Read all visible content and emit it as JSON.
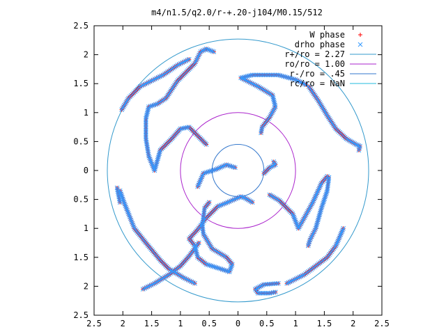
{
  "chart_data": {
    "type": "scatter",
    "title": "m4/n1.5/q2.0/r-+.20-j104/M0.15/512",
    "xlabel": "",
    "ylabel": "",
    "xlim": [
      -2.5,
      2.5
    ],
    "ylim": [
      -2.5,
      2.5
    ],
    "x_ticks": [
      -2.5,
      -2,
      -1.5,
      -1,
      -0.5,
      0,
      0.5,
      1,
      1.5,
      2,
      2.5
    ],
    "y_ticks": [
      -2.5,
      -2,
      -1.5,
      -1,
      -0.5,
      0,
      0.5,
      1,
      1.5,
      2,
      2.5
    ],
    "x_tick_labels": [
      "2.5",
      "2",
      "1.5",
      "1",
      "0.5",
      "0",
      "0.5",
      "1",
      "1.5",
      "2",
      "2.5"
    ],
    "y_tick_labels": [
      "2.5",
      "2",
      "1.5",
      "1",
      "0.5",
      "0",
      "0.5",
      "1",
      "1.5",
      "2",
      "2.5"
    ],
    "grid": false,
    "legend_position": "top-right",
    "legend": [
      {
        "label": "W phase",
        "kind": "points",
        "marker": "plus",
        "color": "#ff0000"
      },
      {
        "label": "drho phase",
        "kind": "points",
        "marker": "x",
        "color": "#3399ff"
      },
      {
        "label": "r+/ro = 2.27",
        "kind": "line",
        "color": "#3399cc"
      },
      {
        "label": "ro/ro = 1.00",
        "kind": "line",
        "color": "#aa22cc"
      },
      {
        "label": "r-/ro = .45",
        "kind": "line",
        "color": "#3377cc"
      },
      {
        "label": "rc/ro = NaN",
        "kind": "line",
        "color": "#22bbdd"
      }
    ],
    "circles": [
      {
        "name": "r+/ro",
        "radius": 2.27,
        "color": "#3399cc"
      },
      {
        "name": "ro/ro",
        "radius": 1.0,
        "color": "#aa22cc"
      },
      {
        "name": "r-/ro",
        "radius": 0.45,
        "color": "#3377cc"
      }
    ],
    "series": [
      {
        "name": "W phase",
        "marker": "plus",
        "color": "#ff0000",
        "arms": [
          [
            [
              0.4,
              0.65
            ],
            [
              0.42,
              0.75
            ],
            [
              0.55,
              0.92
            ],
            [
              0.65,
              1.1
            ],
            [
              0.6,
              1.3
            ],
            [
              0.35,
              1.45
            ],
            [
              0.05,
              1.6
            ],
            [
              0.25,
              1.65
            ],
            [
              0.7,
              1.65
            ],
            [
              1.0,
              1.57
            ],
            [
              1.18,
              1.48
            ]
          ],
          [
            [
              1.23,
              1.45
            ],
            [
              1.4,
              1.2
            ],
            [
              1.55,
              0.95
            ],
            [
              1.7,
              0.72
            ],
            [
              1.88,
              0.55
            ],
            [
              2.05,
              0.45
            ],
            [
              2.12,
              0.42
            ],
            [
              2.1,
              0.35
            ]
          ],
          [
            [
              0.45,
              -0.05
            ],
            [
              0.55,
              0.05
            ],
            [
              0.65,
              0.1
            ],
            [
              0.62,
              0.15
            ]
          ],
          [
            [
              0.55,
              -0.42
            ],
            [
              0.72,
              -0.52
            ],
            [
              0.95,
              -0.75
            ],
            [
              1.05,
              -1.0
            ],
            [
              1.3,
              -0.55
            ],
            [
              1.45,
              -0.22
            ],
            [
              1.55,
              -0.1
            ],
            [
              1.58,
              -0.12
            ],
            [
              1.55,
              -0.35
            ],
            [
              1.45,
              -0.65
            ],
            [
              1.35,
              -1.0
            ],
            [
              1.25,
              -1.2
            ],
            [
              1.22,
              -1.3
            ]
          ],
          [
            [
              1.83,
              -1.0
            ],
            [
              1.7,
              -1.3
            ],
            [
              1.55,
              -1.5
            ],
            [
              1.35,
              -1.65
            ],
            [
              1.15,
              -1.8
            ],
            [
              0.85,
              -1.95
            ]
          ],
          [
            [
              0.7,
              -1.95
            ],
            [
              0.45,
              -1.97
            ],
            [
              0.3,
              -2.05
            ],
            [
              0.35,
              -2.12
            ],
            [
              0.55,
              -2.12
            ],
            [
              0.65,
              -2.1
            ]
          ],
          [
            [
              0.25,
              -0.55
            ],
            [
              0.13,
              -0.48
            ],
            [
              0.05,
              -0.45
            ],
            [
              -0.18,
              -0.55
            ],
            [
              -0.35,
              -0.62
            ],
            [
              -0.55,
              -0.82
            ],
            [
              -0.7,
              -1.02
            ],
            [
              -0.85,
              -1.18
            ],
            [
              -0.75,
              -1.3
            ],
            [
              -0.7,
              -1.5
            ],
            [
              -0.55,
              -1.62
            ],
            [
              -0.3,
              -1.7
            ],
            [
              -0.15,
              -1.75
            ],
            [
              -0.1,
              -1.62
            ],
            [
              -0.2,
              -1.5
            ],
            [
              -0.45,
              -1.35
            ],
            [
              -0.6,
              -1.1
            ],
            [
              -0.62,
              -0.95
            ],
            [
              -0.58,
              -0.65
            ],
            [
              -0.5,
              -0.55
            ]
          ],
          [
            [
              -0.68,
              -1.25
            ],
            [
              -0.85,
              -1.48
            ],
            [
              -1.0,
              -1.65
            ],
            [
              -1.2,
              -1.8
            ],
            [
              -1.45,
              -1.95
            ],
            [
              -1.65,
              -2.05
            ]
          ],
          [
            [
              -2.05,
              -0.35
            ],
            [
              -1.98,
              -0.55
            ],
            [
              -1.88,
              -0.8
            ],
            [
              -1.8,
              -1.0
            ],
            [
              -1.6,
              -1.25
            ],
            [
              -1.35,
              -1.55
            ],
            [
              -1.2,
              -1.7
            ],
            [
              -0.95,
              -1.85
            ],
            [
              -0.75,
              -1.95
            ]
          ],
          [
            [
              -2.1,
              -0.3
            ],
            [
              -2.05,
              -0.55
            ]
          ],
          [
            [
              -0.55,
              0.45
            ],
            [
              -0.65,
              0.55
            ],
            [
              -0.85,
              0.75
            ],
            [
              -1.0,
              0.72
            ],
            [
              -1.15,
              0.55
            ],
            [
              -1.35,
              0.35
            ],
            [
              -1.45,
              0.0
            ],
            [
              -1.55,
              0.25
            ],
            [
              -1.6,
              0.55
            ],
            [
              -1.6,
              0.9
            ],
            [
              -1.55,
              1.1
            ],
            [
              -1.4,
              1.15
            ],
            [
              -1.25,
              1.25
            ],
            [
              -1.05,
              1.55
            ],
            [
              -0.9,
              1.7
            ],
            [
              -0.75,
              1.85
            ],
            [
              -0.65,
              2.05
            ],
            [
              -0.55,
              2.1
            ],
            [
              -0.42,
              2.05
            ]
          ],
          [
            [
              -0.05,
              0.05
            ],
            [
              -0.2,
              0.1
            ],
            [
              -0.38,
              0.02
            ],
            [
              -0.6,
              -0.05
            ],
            [
              -0.7,
              -0.28
            ]
          ],
          [
            [
              -2.02,
              1.05
            ],
            [
              -1.9,
              1.25
            ],
            [
              -1.7,
              1.45
            ],
            [
              -1.5,
              1.55
            ],
            [
              -1.3,
              1.65
            ],
            [
              -1.05,
              1.82
            ],
            [
              -0.85,
              1.92
            ]
          ]
        ]
      },
      {
        "name": "drho phase",
        "marker": "x",
        "color": "#3399ff",
        "arms": [
          [
            [
              0.4,
              0.65
            ],
            [
              0.42,
              0.75
            ],
            [
              0.55,
              0.92
            ],
            [
              0.65,
              1.1
            ],
            [
              0.6,
              1.3
            ],
            [
              0.35,
              1.45
            ],
            [
              0.05,
              1.6
            ],
            [
              0.25,
              1.65
            ],
            [
              0.7,
              1.65
            ],
            [
              1.0,
              1.57
            ],
            [
              1.18,
              1.48
            ]
          ],
          [
            [
              1.23,
              1.45
            ],
            [
              1.4,
              1.2
            ],
            [
              1.55,
              0.95
            ],
            [
              1.7,
              0.72
            ],
            [
              1.88,
              0.55
            ],
            [
              2.05,
              0.45
            ],
            [
              2.12,
              0.42
            ],
            [
              2.1,
              0.35
            ]
          ],
          [
            [
              0.45,
              -0.05
            ],
            [
              0.55,
              0.05
            ],
            [
              0.65,
              0.1
            ],
            [
              0.62,
              0.15
            ]
          ],
          [
            [
              0.55,
              -0.42
            ],
            [
              0.72,
              -0.52
            ],
            [
              0.95,
              -0.75
            ],
            [
              1.05,
              -1.0
            ],
            [
              1.3,
              -0.55
            ],
            [
              1.45,
              -0.22
            ],
            [
              1.55,
              -0.1
            ],
            [
              1.58,
              -0.12
            ],
            [
              1.55,
              -0.35
            ],
            [
              1.45,
              -0.65
            ],
            [
              1.35,
              -1.0
            ],
            [
              1.25,
              -1.2
            ],
            [
              1.22,
              -1.3
            ]
          ],
          [
            [
              1.83,
              -1.0
            ],
            [
              1.7,
              -1.3
            ],
            [
              1.55,
              -1.5
            ],
            [
              1.35,
              -1.65
            ],
            [
              1.15,
              -1.8
            ],
            [
              0.85,
              -1.95
            ]
          ],
          [
            [
              0.7,
              -1.95
            ],
            [
              0.45,
              -1.97
            ],
            [
              0.3,
              -2.05
            ],
            [
              0.35,
              -2.12
            ],
            [
              0.55,
              -2.12
            ],
            [
              0.65,
              -2.1
            ]
          ],
          [
            [
              0.25,
              -0.55
            ],
            [
              0.13,
              -0.48
            ],
            [
              0.05,
              -0.45
            ],
            [
              -0.18,
              -0.55
            ],
            [
              -0.35,
              -0.62
            ],
            [
              -0.55,
              -0.82
            ],
            [
              -0.7,
              -1.02
            ],
            [
              -0.85,
              -1.18
            ],
            [
              -0.75,
              -1.3
            ],
            [
              -0.7,
              -1.5
            ],
            [
              -0.55,
              -1.62
            ],
            [
              -0.3,
              -1.7
            ],
            [
              -0.15,
              -1.75
            ],
            [
              -0.1,
              -1.62
            ],
            [
              -0.2,
              -1.5
            ],
            [
              -0.45,
              -1.35
            ],
            [
              -0.6,
              -1.1
            ],
            [
              -0.62,
              -0.95
            ],
            [
              -0.58,
              -0.65
            ],
            [
              -0.5,
              -0.55
            ]
          ],
          [
            [
              -0.68,
              -1.25
            ],
            [
              -0.85,
              -1.48
            ],
            [
              -1.0,
              -1.65
            ],
            [
              -1.2,
              -1.8
            ],
            [
              -1.45,
              -1.95
            ],
            [
              -1.65,
              -2.05
            ]
          ],
          [
            [
              -2.05,
              -0.35
            ],
            [
              -1.98,
              -0.55
            ],
            [
              -1.88,
              -0.8
            ],
            [
              -1.8,
              -1.0
            ],
            [
              -1.6,
              -1.25
            ],
            [
              -1.35,
              -1.55
            ],
            [
              -1.2,
              -1.7
            ],
            [
              -0.95,
              -1.85
            ],
            [
              -0.75,
              -1.95
            ]
          ],
          [
            [
              -2.1,
              -0.3
            ],
            [
              -2.05,
              -0.55
            ]
          ],
          [
            [
              -0.55,
              0.45
            ],
            [
              -0.65,
              0.55
            ],
            [
              -0.85,
              0.75
            ],
            [
              -1.0,
              0.72
            ],
            [
              -1.15,
              0.55
            ],
            [
              -1.35,
              0.35
            ],
            [
              -1.45,
              0.0
            ],
            [
              -1.55,
              0.25
            ],
            [
              -1.6,
              0.55
            ],
            [
              -1.6,
              0.9
            ],
            [
              -1.55,
              1.1
            ],
            [
              -1.4,
              1.15
            ],
            [
              -1.25,
              1.25
            ],
            [
              -1.05,
              1.55
            ],
            [
              -0.9,
              1.7
            ],
            [
              -0.75,
              1.85
            ],
            [
              -0.65,
              2.05
            ],
            [
              -0.55,
              2.1
            ],
            [
              -0.42,
              2.05
            ]
          ],
          [
            [
              -0.05,
              0.05
            ],
            [
              -0.2,
              0.1
            ],
            [
              -0.38,
              0.02
            ],
            [
              -0.6,
              -0.05
            ],
            [
              -0.7,
              -0.28
            ]
          ],
          [
            [
              -2.02,
              1.05
            ],
            [
              -1.9,
              1.25
            ],
            [
              -1.7,
              1.45
            ],
            [
              -1.5,
              1.55
            ],
            [
              -1.3,
              1.65
            ],
            [
              -1.05,
              1.82
            ],
            [
              -0.85,
              1.92
            ]
          ]
        ]
      }
    ]
  }
}
